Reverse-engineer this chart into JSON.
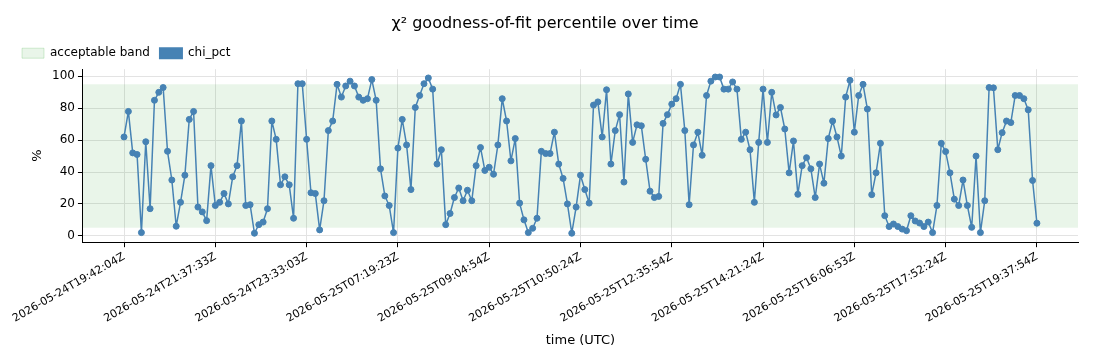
{
  "chart_data": {
    "type": "line",
    "title": "χ² goodness-of-fit percentile over time",
    "xlabel": "time (UTC)",
    "ylabel": "%",
    "categories": [
      "2026-05-24T19:42:04Z",
      null,
      null,
      null,
      null,
      null,
      null,
      null,
      null,
      null,
      null,
      null,
      null,
      null,
      null,
      null,
      null,
      null,
      null,
      null,
      null,
      "2026-05-24T21:37:33Z",
      null,
      null,
      null,
      null,
      null,
      null,
      null,
      null,
      null,
      null,
      null,
      null,
      null,
      null,
      null,
      null,
      null,
      null,
      null,
      null,
      "2026-05-24T23:33:03Z",
      null,
      null,
      null,
      null,
      null,
      null,
      null,
      null,
      null,
      null,
      null,
      null,
      null,
      null,
      null,
      null,
      null,
      null,
      null,
      null,
      "2026-05-25T07:19:23Z",
      null,
      null,
      null,
      null,
      null,
      null,
      null,
      null,
      null,
      null,
      null,
      null,
      null,
      null,
      null,
      null,
      null,
      null,
      null,
      null,
      "2026-05-25T09:04:54Z",
      null,
      null,
      null,
      null,
      null,
      null,
      null,
      null,
      null,
      null,
      null,
      null,
      null,
      null,
      null,
      null,
      null,
      null,
      null,
      null,
      "2026-05-25T10:50:24Z",
      null,
      null,
      null,
      null,
      null,
      null,
      null,
      null,
      null,
      null,
      null,
      null,
      null,
      null,
      null,
      null,
      null,
      null,
      null,
      null,
      "2026-05-25T12:35:54Z",
      null,
      null,
      null,
      null,
      null,
      null,
      null,
      null,
      null,
      null,
      null,
      null,
      null,
      null,
      null,
      null,
      null,
      null,
      null,
      null,
      "2026-05-25T14:21:24Z",
      null,
      null,
      null,
      null,
      null,
      null,
      null,
      null,
      null,
      null,
      null,
      null,
      null,
      null,
      null,
      null,
      null,
      null,
      null,
      null,
      "2026-05-25T16:06:53Z",
      null,
      null,
      null,
      null,
      null,
      null,
      null,
      null,
      null,
      null,
      null,
      null,
      null,
      null,
      null,
      null,
      null,
      null,
      null,
      null,
      "2026-05-25T17:52:24Z",
      null,
      null,
      null,
      null,
      null,
      null,
      null,
      null,
      null,
      null,
      null,
      null,
      null,
      null,
      null,
      null,
      null,
      null,
      null,
      null,
      "2026-05-25T19:37:54Z"
    ],
    "series": [
      {
        "name": "chi_pct",
        "color": "#4682b4",
        "values": [
          62,
          78,
          52,
          51,
          2,
          59,
          17,
          85,
          90,
          93,
          53,
          35,
          6,
          21,
          38,
          73,
          78,
          18,
          15,
          9.5,
          44,
          19,
          21,
          26.5,
          20,
          37,
          44,
          72,
          19,
          19.5,
          1.6,
          7,
          8.6,
          17,
          72,
          60.5,
          32,
          37,
          32,
          11,
          95.4,
          95.4,
          60.5,
          27,
          26.5,
          3.7,
          22,
          66,
          72,
          95,
          87,
          94,
          97,
          94,
          87,
          85,
          86,
          98,
          85,
          42,
          25,
          19,
          2,
          55,
          73,
          57,
          29,
          80.5,
          88,
          95.4,
          99,
          92,
          45,
          54,
          7,
          14,
          24,
          30,
          22,
          28.6,
          22,
          44,
          55.4,
          41,
          43,
          38.6,
          57,
          86,
          72,
          47,
          61,
          20.5,
          10,
          2,
          4.7,
          11,
          53,
          51.6,
          51.6,
          65,
          45,
          36,
          20,
          1.6,
          18,
          38,
          29,
          20.5,
          82,
          84,
          62,
          91.6,
          45,
          66,
          76,
          33.7,
          89,
          58.6,
          69.6,
          69,
          48,
          28,
          24,
          24.7,
          70.5,
          76,
          82.6,
          86,
          95,
          66,
          19.5,
          57,
          65,
          50.5,
          88,
          97,
          99.6,
          99.6,
          92,
          92,
          96.5,
          92,
          60.5,
          65,
          54,
          21,
          58.6,
          92,
          58.6,
          90,
          75.8,
          80.5,
          67,
          39.5,
          59.5,
          26,
          44,
          49,
          42,
          24,
          45,
          33,
          61,
          72,
          62,
          50,
          87,
          97.5,
          65,
          88,
          95,
          79.5,
          25.8,
          39.5,
          58,
          12.6,
          5.8,
          7.4,
          5.8,
          4.2,
          3.2,
          12.6,
          9.3,
          8,
          5.8,
          8.6,
          2,
          19,
          58,
          52.8,
          39.5,
          23,
          19,
          35,
          19,
          5.3,
          50,
          2,
          22,
          93,
          92.8,
          54,
          64.7,
          72,
          71,
          88,
          88,
          86,
          79,
          34.7,
          7.9
        ]
      }
    ],
    "bands": [
      {
        "axis": "y",
        "from": 5,
        "to": 95,
        "label": "acceptable band",
        "color": "#2ca02c"
      }
    ],
    "ylim": [
      -4,
      104.5
    ],
    "yticks": [
      0,
      20,
      40,
      60,
      80,
      100
    ],
    "grid": true,
    "legend": "top left",
    "marker": "circle",
    "line_style": "solid"
  }
}
